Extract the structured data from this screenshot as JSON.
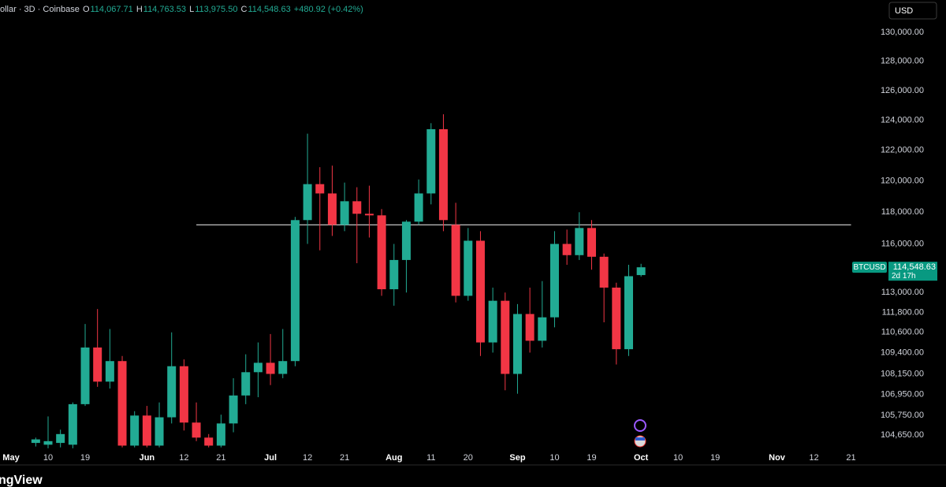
{
  "header": {
    "symbol": "ollar · 3D · Coinbase",
    "ohlc": [
      {
        "key": "O",
        "value": "114,067.71"
      },
      {
        "key": "H",
        "value": "114,763.53"
      },
      {
        "key": "L",
        "value": "113,975.50"
      },
      {
        "key": "C",
        "value": "114,548.63"
      }
    ],
    "change": "+480.92 (+0.42%)",
    "currency": "USD",
    "watermark": "ngView"
  },
  "chart_data": {
    "type": "candlestick",
    "log_scale": true,
    "up_color": "#22ab94",
    "down_color": "#f23645",
    "categories": [
      "May",
      null,
      null,
      "10",
      null,
      null,
      "19",
      null,
      null,
      null,
      null,
      "Jun",
      null,
      null,
      "12",
      null,
      null,
      "21",
      null,
      null,
      null,
      "Jul",
      null,
      null,
      "12",
      null,
      null,
      "21",
      null,
      null,
      null,
      "Aug",
      null,
      null,
      "11",
      null,
      null,
      "20",
      null,
      null,
      null,
      "Sep",
      null,
      null,
      "10",
      null,
      null,
      "19",
      null,
      null,
      null,
      "Oct",
      null,
      null,
      "10",
      null,
      null,
      "19",
      null,
      null,
      null,
      null,
      "Nov",
      null,
      null,
      "12",
      null,
      null,
      "21"
    ],
    "open": [
      null,
      null,
      104200,
      104100,
      104200,
      104100,
      106400,
      109700,
      107700,
      108900,
      104050,
      105750,
      104050,
      105650,
      108600,
      105350,
      104500,
      104050,
      105300,
      106900,
      108250,
      108800,
      108150,
      108900,
      117500,
      119800,
      119200,
      117200,
      118700,
      117900,
      117800,
      113200,
      115000,
      117400,
      119200,
      123400,
      117200,
      112800,
      116200,
      110000,
      112500,
      108150,
      111700,
      110100,
      111500,
      116000,
      115300,
      117000,
      115200,
      113300,
      109600,
      114067.71,
      null,
      null,
      null,
      null,
      null,
      null,
      null,
      null,
      null,
      null,
      null,
      null,
      null,
      null,
      null,
      null,
      null
    ],
    "high": [
      null,
      null,
      104500,
      105700,
      104950,
      106500,
      111100,
      112000,
      110800,
      109200,
      106000,
      106300,
      106500,
      110600,
      109000,
      106500,
      104700,
      105800,
      107900,
      109300,
      110000,
      110500,
      110800,
      117700,
      123100,
      120900,
      121000,
      119900,
      119600,
      119700,
      118200,
      116000,
      117500,
      120100,
      123800,
      124400,
      118600,
      117000,
      116800,
      113300,
      113000,
      112300,
      113300,
      113700,
      116800,
      116900,
      118000,
      117500,
      115400,
      113600,
      114700,
      114763.53,
      null,
      null,
      null,
      null,
      null,
      null,
      null,
      null,
      null,
      null,
      null,
      null,
      null,
      null,
      null,
      null,
      null
    ],
    "low": [
      null,
      null,
      104000,
      103900,
      103950,
      103900,
      106300,
      107400,
      107300,
      103950,
      103950,
      103950,
      103950,
      105300,
      104900,
      104300,
      103950,
      103950,
      104800,
      106400,
      106800,
      107500,
      107900,
      108600,
      116000,
      115600,
      116500,
      116800,
      114800,
      116400,
      112800,
      112200,
      113000,
      117200,
      118500,
      116800,
      112400,
      112500,
      109200,
      109400,
      107200,
      107000,
      109400,
      109700,
      110900,
      114700,
      115000,
      114400,
      111200,
      108700,
      109200,
      113975.5,
      null,
      null,
      null,
      null,
      null,
      null,
      null,
      null,
      null,
      null,
      null,
      null,
      null,
      null,
      null,
      null,
      null
    ],
    "close": [
      null,
      null,
      104400,
      104300,
      104700,
      106400,
      109700,
      107700,
      108900,
      104050,
      105750,
      104050,
      105650,
      108600,
      105350,
      104500,
      104050,
      105300,
      106900,
      108250,
      108800,
      108150,
      108900,
      117500,
      119800,
      119200,
      117200,
      118700,
      117900,
      117800,
      113200,
      115000,
      117400,
      119200,
      123400,
      117500,
      112800,
      116200,
      110000,
      112500,
      108150,
      111700,
      110100,
      111500,
      116000,
      115300,
      117000,
      115200,
      113300,
      109600,
      114000,
      114548.63,
      null,
      null,
      null,
      null,
      null,
      null,
      null,
      null,
      null,
      null,
      null,
      null,
      null,
      null,
      null,
      null,
      null
    ],
    "ylim": [
      103850,
      132300
    ],
    "yticks": [
      {
        "value": 130000,
        "label": "130,000.00"
      },
      {
        "value": 128000,
        "label": "128,000.00"
      },
      {
        "value": 126000,
        "label": "126,000.00"
      },
      {
        "value": 124000,
        "label": "124,000.00"
      },
      {
        "value": 122000,
        "label": "122,000.00"
      },
      {
        "value": 120000,
        "label": "120,000.00"
      },
      {
        "value": 118000,
        "label": "118,000.00"
      },
      {
        "value": 116000,
        "label": "116,000.00"
      },
      {
        "value": 113000,
        "label": "113,000.00"
      },
      {
        "value": 111800,
        "label": "111,800.00"
      },
      {
        "value": 110600,
        "label": "110,600.00"
      },
      {
        "value": 109400,
        "label": "109,400.00"
      },
      {
        "value": 108150,
        "label": "108,150.00"
      },
      {
        "value": 106950,
        "label": "106,950.00"
      },
      {
        "value": 105750,
        "label": "105,750.00"
      },
      {
        "value": 104650,
        "label": "104,650.00"
      }
    ],
    "hline": {
      "value": 117200,
      "color": "#d9d9d9"
    },
    "price_tag": {
      "name": "BTCUSD",
      "value": 114548.63,
      "label": "114,548.63",
      "countdown": "2d 17h",
      "color": "#089981"
    }
  }
}
